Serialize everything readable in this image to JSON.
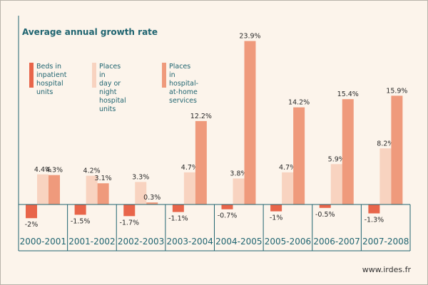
{
  "chart_data": {
    "type": "bar",
    "title": "Average annual growth rate",
    "categories": [
      "2000-2001",
      "2001-2002",
      "2002-2003",
      "2003-2004",
      "2004-2005",
      "2005-2006",
      "2006-2007",
      "2007-2008"
    ],
    "series": [
      {
        "name": "Beds in\ninpatient\nhospital units",
        "color": "#e8654a",
        "values": [
          -2.0,
          -1.5,
          -1.7,
          -1.1,
          -0.7,
          -1.0,
          -0.5,
          -1.3
        ],
        "labels": [
          "-2%",
          "-1.5%",
          "-1.7%",
          "-1.1%",
          "-0.7%",
          "-1%",
          "-0.5%",
          "-1.3%"
        ]
      },
      {
        "name": "Places in\nday or night\nhospital units",
        "color": "#f8d3c0",
        "values": [
          4.4,
          4.2,
          3.3,
          4.7,
          3.8,
          4.7,
          5.9,
          8.2
        ],
        "labels": [
          "4.4%",
          "4.2%",
          "3.3%",
          "4.7%",
          "3.8%",
          "4.7%",
          "5.9%",
          "8.2%"
        ]
      },
      {
        "name": "Places in\nhospital-at-home\nservices",
        "color": "#ef9a7c",
        "values": [
          4.3,
          3.1,
          0.3,
          12.2,
          23.9,
          14.2,
          15.4,
          15.9
        ],
        "labels": [
          "4.3%",
          "3.1%",
          "0.3%",
          "12.2%",
          "23.9%",
          "14.2%",
          "15.4%",
          "15.9%"
        ]
      }
    ],
    "ylim": [
      -3,
      24.5
    ],
    "grid": false,
    "legend_position": "top-left"
  },
  "footer": {
    "source": "www.irdes.fr"
  },
  "colors": {
    "text": "#1f6470",
    "background": "#fcf4eb",
    "axis": "#1f6470"
  }
}
